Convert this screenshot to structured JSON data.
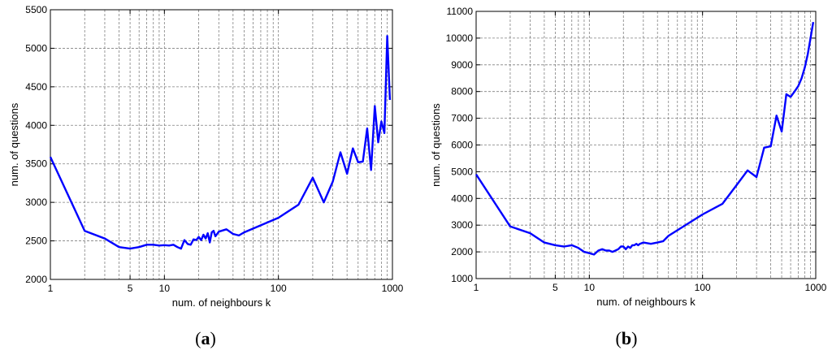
{
  "chart_data": [
    {
      "type": "line",
      "panel_label": "a",
      "xlabel": "num. of neighbours k",
      "ylabel": "num. of questions",
      "xscale": "log",
      "xlim": [
        1,
        1000
      ],
      "ylim": [
        2000,
        5500
      ],
      "xticks": [
        1,
        5,
        10,
        100,
        1000
      ],
      "xtick_labels": [
        "1",
        "5",
        "10",
        "100",
        "1000"
      ],
      "yticks": [
        2000,
        2500,
        3000,
        3500,
        4000,
        4500,
        5000,
        5500
      ],
      "grid": true,
      "color": "#0000ff",
      "x": [
        1,
        2,
        3,
        4,
        5,
        6,
        7,
        8,
        9,
        10,
        11,
        12,
        13,
        14,
        15,
        16,
        17,
        18,
        19,
        20,
        21,
        22,
        23,
        24,
        25,
        26,
        27,
        28,
        30,
        35,
        40,
        45,
        50,
        100,
        150,
        200,
        250,
        300,
        350,
        400,
        450,
        500,
        550,
        600,
        650,
        700,
        750,
        800,
        850,
        900,
        950
      ],
      "y": [
        3590,
        2630,
        2530,
        2420,
        2400,
        2420,
        2450,
        2450,
        2440,
        2445,
        2440,
        2450,
        2420,
        2400,
        2510,
        2460,
        2450,
        2520,
        2510,
        2550,
        2510,
        2580,
        2530,
        2600,
        2480,
        2610,
        2630,
        2560,
        2620,
        2650,
        2590,
        2570,
        2610,
        2800,
        2970,
        3320,
        3000,
        3270,
        3650,
        3370,
        3700,
        3520,
        3530,
        3960,
        3420,
        4250,
        3780,
        4050,
        3900,
        5160,
        4330
      ]
    },
    {
      "type": "line",
      "panel_label": "b",
      "xlabel": "num. of neighbours k",
      "ylabel": "num. of questions",
      "xscale": "log",
      "xlim": [
        1,
        1000
      ],
      "ylim": [
        1000,
        11000
      ],
      "xticks": [
        1,
        5,
        10,
        100,
        1000
      ],
      "xtick_labels": [
        "1",
        "5",
        "10",
        "100",
        "1000"
      ],
      "yticks": [
        1000,
        2000,
        3000,
        4000,
        5000,
        6000,
        7000,
        8000,
        9000,
        10000,
        11000
      ],
      "grid": true,
      "color": "#0000ff",
      "x": [
        1,
        2,
        3,
        4,
        5,
        6,
        7,
        8,
        9,
        10,
        11,
        12,
        13,
        14,
        15,
        16,
        17,
        18,
        19,
        20,
        21,
        22,
        23,
        24,
        25,
        26,
        27,
        28,
        30,
        35,
        40,
        45,
        50,
        100,
        150,
        200,
        250,
        300,
        350,
        400,
        450,
        500,
        550,
        600,
        650,
        700,
        750,
        800,
        850,
        900,
        950
      ],
      "y": [
        4900,
        2950,
        2700,
        2350,
        2250,
        2200,
        2250,
        2150,
        2000,
        1950,
        1900,
        2050,
        2100,
        2050,
        2050,
        2000,
        2050,
        2100,
        2200,
        2200,
        2100,
        2200,
        2150,
        2250,
        2250,
        2300,
        2250,
        2300,
        2350,
        2300,
        2350,
        2400,
        2600,
        3400,
        3800,
        4500,
        5050,
        4800,
        5900,
        5950,
        7100,
        6500,
        7900,
        7800,
        8000,
        8200,
        8500,
        8900,
        9400,
        10000,
        10600
      ]
    }
  ]
}
